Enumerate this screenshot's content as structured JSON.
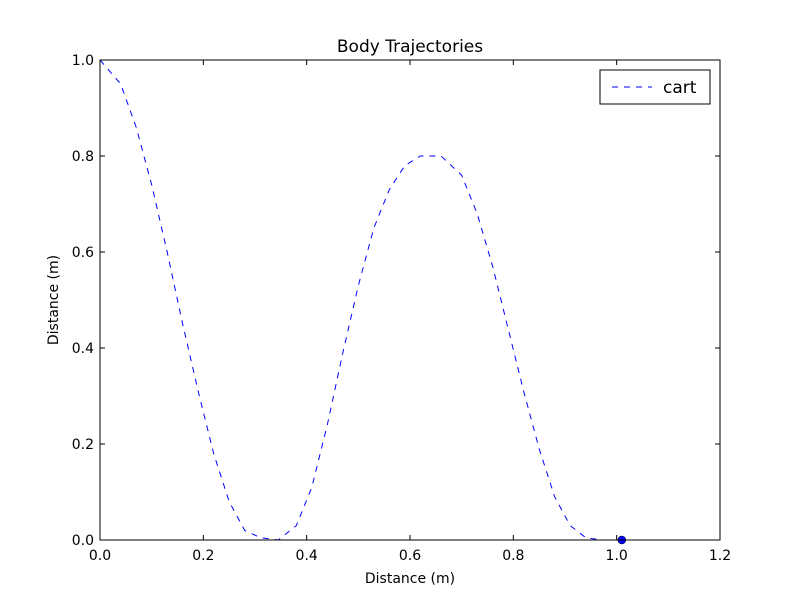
{
  "chart_data": {
    "type": "line",
    "title": "Body Trajectories",
    "xlabel": "Distance (m)",
    "ylabel": "Distance (m)",
    "xlim": [
      0.0,
      1.2
    ],
    "ylim": [
      0.0,
      1.0
    ],
    "xticks": [
      "0.0",
      "0.2",
      "0.4",
      "0.6",
      "0.8",
      "1.0",
      "1.2"
    ],
    "yticks": [
      "0.0",
      "0.2",
      "0.4",
      "0.6",
      "0.8",
      "1.0"
    ],
    "grid": false,
    "legend_position": "top-right",
    "series": [
      {
        "name": "cart",
        "style": "dashed",
        "color": "#0000ff",
        "x": [
          0.0,
          0.04,
          0.07,
          0.1,
          0.13,
          0.16,
          0.19,
          0.22,
          0.25,
          0.28,
          0.31,
          0.345,
          0.38,
          0.41,
          0.44,
          0.47,
          0.5,
          0.53,
          0.56,
          0.59,
          0.62,
          0.66,
          0.7,
          0.73,
          0.76,
          0.79,
          0.82,
          0.85,
          0.88,
          0.91,
          0.94,
          0.97,
          1.01
        ],
        "y": [
          1.0,
          0.95,
          0.86,
          0.74,
          0.6,
          0.45,
          0.31,
          0.18,
          0.08,
          0.02,
          0.005,
          0.0,
          0.03,
          0.11,
          0.24,
          0.39,
          0.53,
          0.65,
          0.73,
          0.78,
          0.8,
          0.8,
          0.76,
          0.68,
          0.57,
          0.44,
          0.31,
          0.19,
          0.09,
          0.03,
          0.005,
          0.0,
          0.0
        ]
      }
    ],
    "end_marker": {
      "x": 1.01,
      "y": 0.0,
      "color": "#0000ff"
    }
  }
}
